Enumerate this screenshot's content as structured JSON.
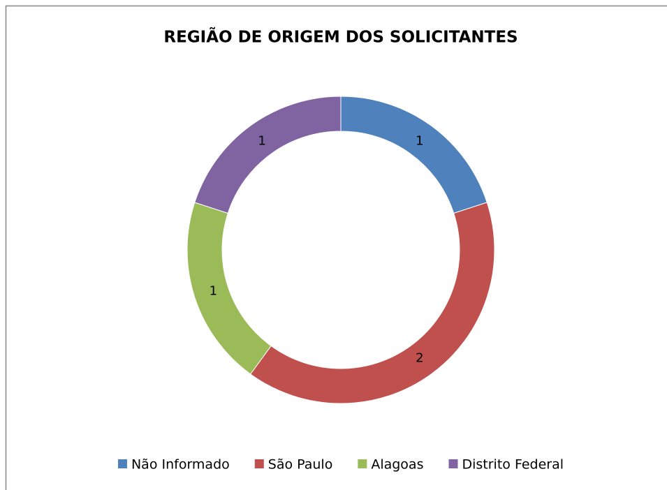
{
  "chart_data": {
    "type": "doughnut",
    "title": "REGIÃO DE ORIGEM DOS SOLICITANTES",
    "categories": [
      "Não Informado",
      "São Paulo",
      "Alagoas",
      "Distrito Federal"
    ],
    "values": [
      1,
      2,
      1,
      1
    ],
    "colors": [
      "#4f81bd",
      "#c0504d",
      "#9bbb59",
      "#8064a2"
    ],
    "legend": "bottom"
  }
}
